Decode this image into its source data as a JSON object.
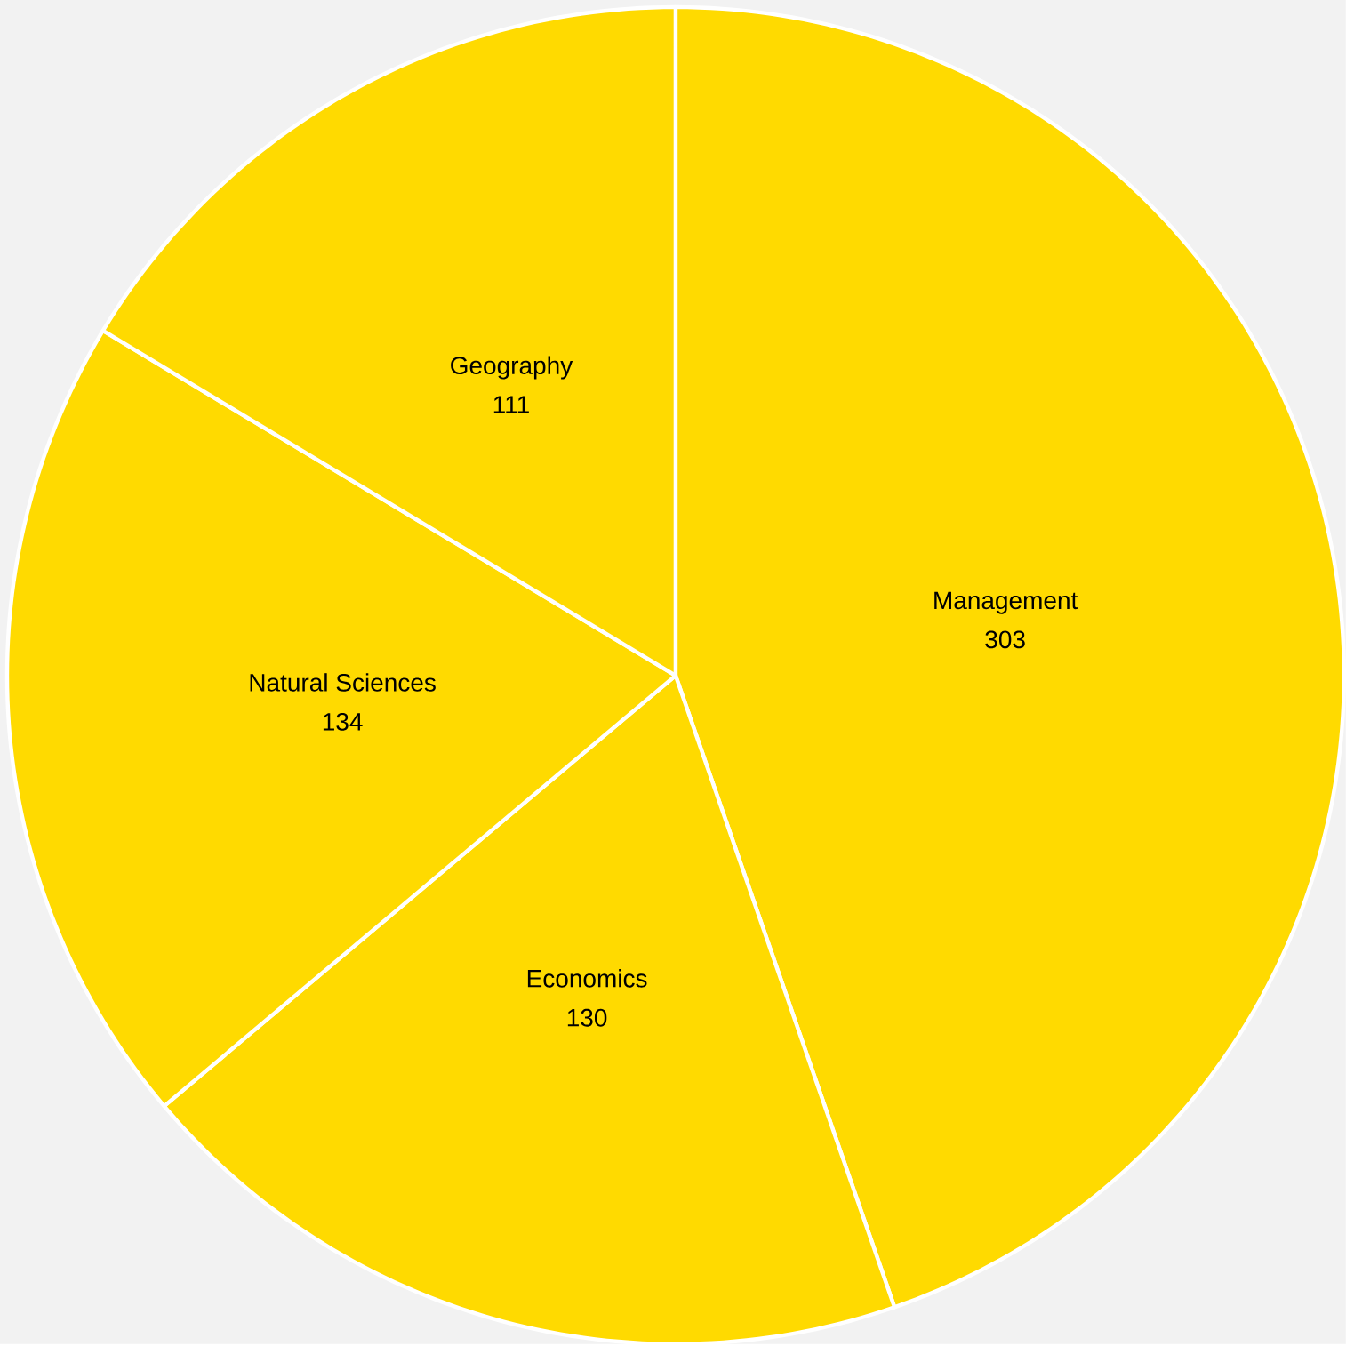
{
  "chart_data": {
    "type": "pie",
    "categories": [
      "Management",
      "Economics",
      "Natural Sciences",
      "Geography"
    ],
    "values": [
      303,
      130,
      134,
      111
    ],
    "colors": [
      "#ffda00",
      "#ffda00",
      "#ffda00",
      "#ffda00"
    ],
    "data_labels": true
  }
}
